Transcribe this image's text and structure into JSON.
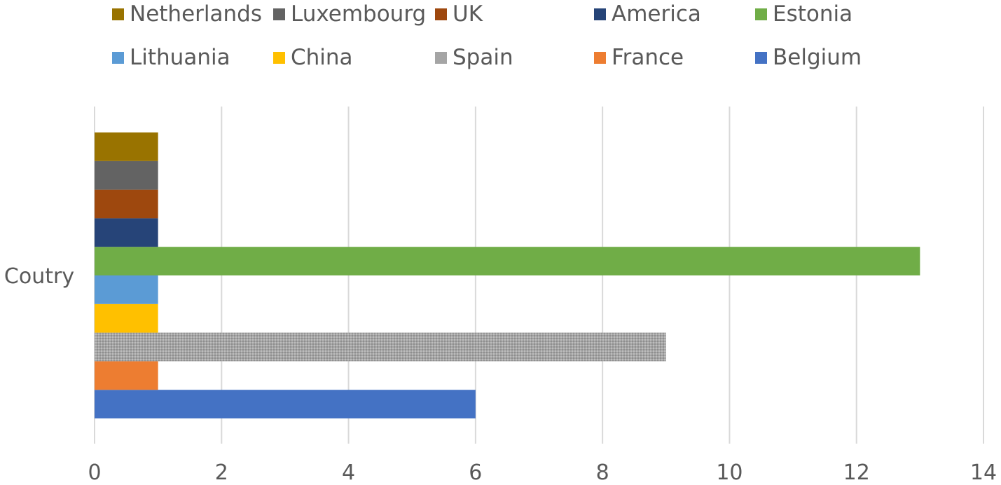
{
  "chart_data": {
    "type": "bar",
    "orientation": "horizontal",
    "categories": [
      "Coutry"
    ],
    "series": [
      {
        "name": "Belgium",
        "values": [
          6
        ],
        "color": "#4472c4"
      },
      {
        "name": "France",
        "values": [
          1
        ],
        "color": "#ed7d31"
      },
      {
        "name": "Spain",
        "values": [
          9
        ],
        "color": "#a5a5a5"
      },
      {
        "name": "China",
        "values": [
          1
        ],
        "color": "#ffc000"
      },
      {
        "name": "Lithuania",
        "values": [
          1
        ],
        "color": "#5b9bd5"
      },
      {
        "name": "Estonia",
        "values": [
          13
        ],
        "color": "#70ad47"
      },
      {
        "name": "America",
        "values": [
          1
        ],
        "color": "#264478"
      },
      {
        "name": "UK",
        "values": [
          1
        ],
        "color": "#9e480e"
      },
      {
        "name": "Luxembourg",
        "values": [
          1
        ],
        "color": "#636363"
      },
      {
        "name": "Netherlands",
        "values": [
          1
        ],
        "color": "#997300"
      }
    ],
    "legend_order": [
      "Netherlands",
      "Luxembourg",
      "UK",
      "America",
      "Estonia",
      "Lithuania",
      "China",
      "Spain",
      "France",
      "Belgium"
    ],
    "x_ticks": [
      "0",
      "2",
      "4",
      "6",
      "8",
      "10",
      "12",
      "14"
    ],
    "xlim": [
      0,
      14
    ],
    "grid": true,
    "legend_position": "top",
    "title": "",
    "xlabel": "",
    "ylabel": ""
  }
}
